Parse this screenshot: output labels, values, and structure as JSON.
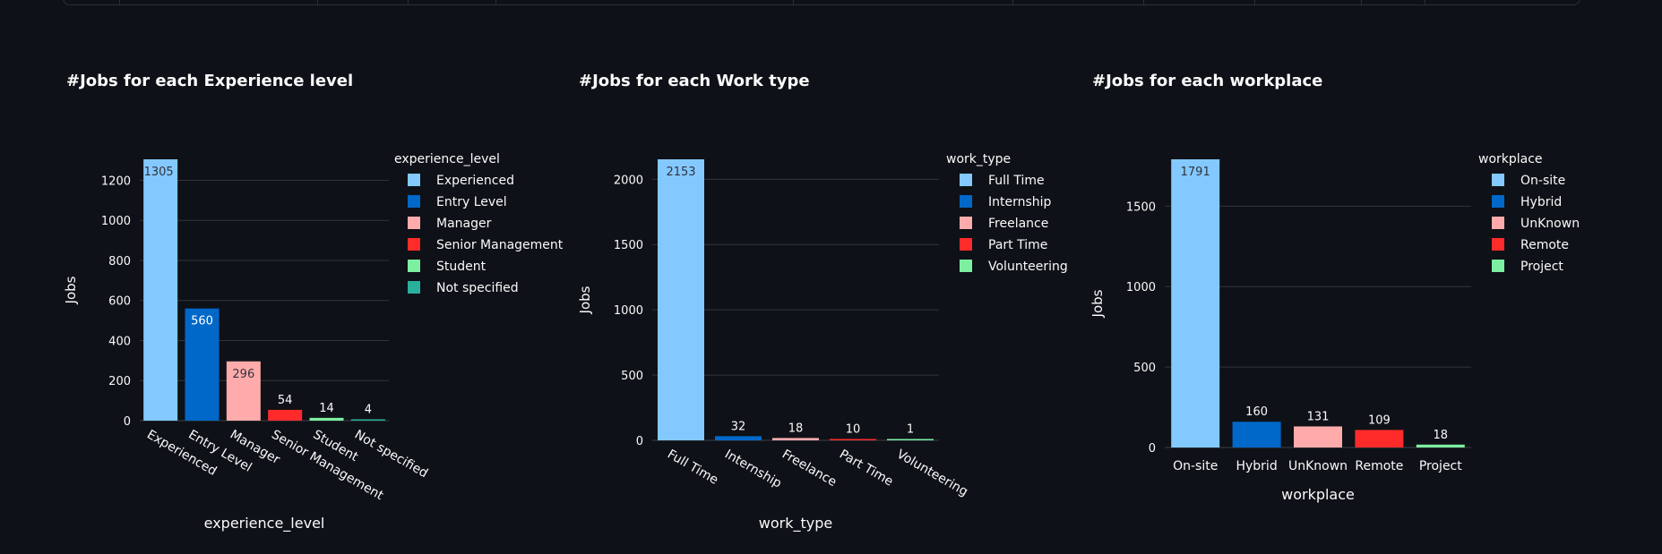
{
  "charts": [
    {
      "id": "experience",
      "title": "#Jobs for each Experience level",
      "chart_data": {
        "type": "bar",
        "categories": [
          "Experienced",
          "Entry Level",
          "Manager",
          "Senior Management",
          "Student",
          "Not specified"
        ],
        "values": [
          1305,
          560,
          296,
          54,
          14,
          4
        ],
        "colors": [
          "#83c9ff",
          "#0068c9",
          "#ffabab",
          "#ff2b2b",
          "#7defa1",
          "#29b09d"
        ],
        "label_colors": [
          "#31333f",
          "#ffffff",
          "#31333f",
          "#ffffff",
          "#ffffff",
          "#ffffff"
        ],
        "ylim": [
          0,
          1305
        ],
        "yticks": [
          0,
          200,
          400,
          600,
          800,
          1000,
          1200
        ],
        "xlabel": "experience_level",
        "ylabel": "Jobs",
        "legend_title": "experience_level",
        "legend_position": "right",
        "rotated_ticks": true,
        "grid": true
      }
    },
    {
      "id": "worktype",
      "title": "#Jobs for each Work type",
      "chart_data": {
        "type": "bar",
        "categories": [
          "Full Time",
          "Internship",
          "Freelance",
          "Part Time",
          "Volunteering"
        ],
        "values": [
          2153,
          32,
          18,
          10,
          1
        ],
        "colors": [
          "#83c9ff",
          "#0068c9",
          "#ffabab",
          "#ff2b2b",
          "#7defa1"
        ],
        "label_colors": [
          "#31333f",
          "#ffffff",
          "#ffffff",
          "#ffffff",
          "#ffffff"
        ],
        "ylim": [
          0,
          2153
        ],
        "yticks": [
          0,
          500,
          1000,
          1500,
          2000
        ],
        "xlabel": "work_type",
        "ylabel": "Jobs",
        "legend_title": "work_type",
        "legend_position": "right",
        "rotated_ticks": true,
        "grid": true
      }
    },
    {
      "id": "workplace",
      "title": "#Jobs for each workplace",
      "chart_data": {
        "type": "bar",
        "categories": [
          "On-site",
          "Hybrid",
          "UnKnown",
          "Remote",
          "Project"
        ],
        "values": [
          1791,
          160,
          131,
          109,
          18
        ],
        "colors": [
          "#83c9ff",
          "#0068c9",
          "#ffabab",
          "#ff2b2b",
          "#7defa1"
        ],
        "label_colors": [
          "#31333f",
          "#ffffff",
          "#ffffff",
          "#ffffff",
          "#ffffff"
        ],
        "ylim": [
          0,
          1791
        ],
        "yticks": [
          0,
          500,
          1000,
          1500
        ],
        "xlabel": "workplace",
        "ylabel": "Jobs",
        "legend_title": "workplace",
        "legend_position": "right",
        "rotated_ticks": false,
        "grid": true
      }
    }
  ]
}
